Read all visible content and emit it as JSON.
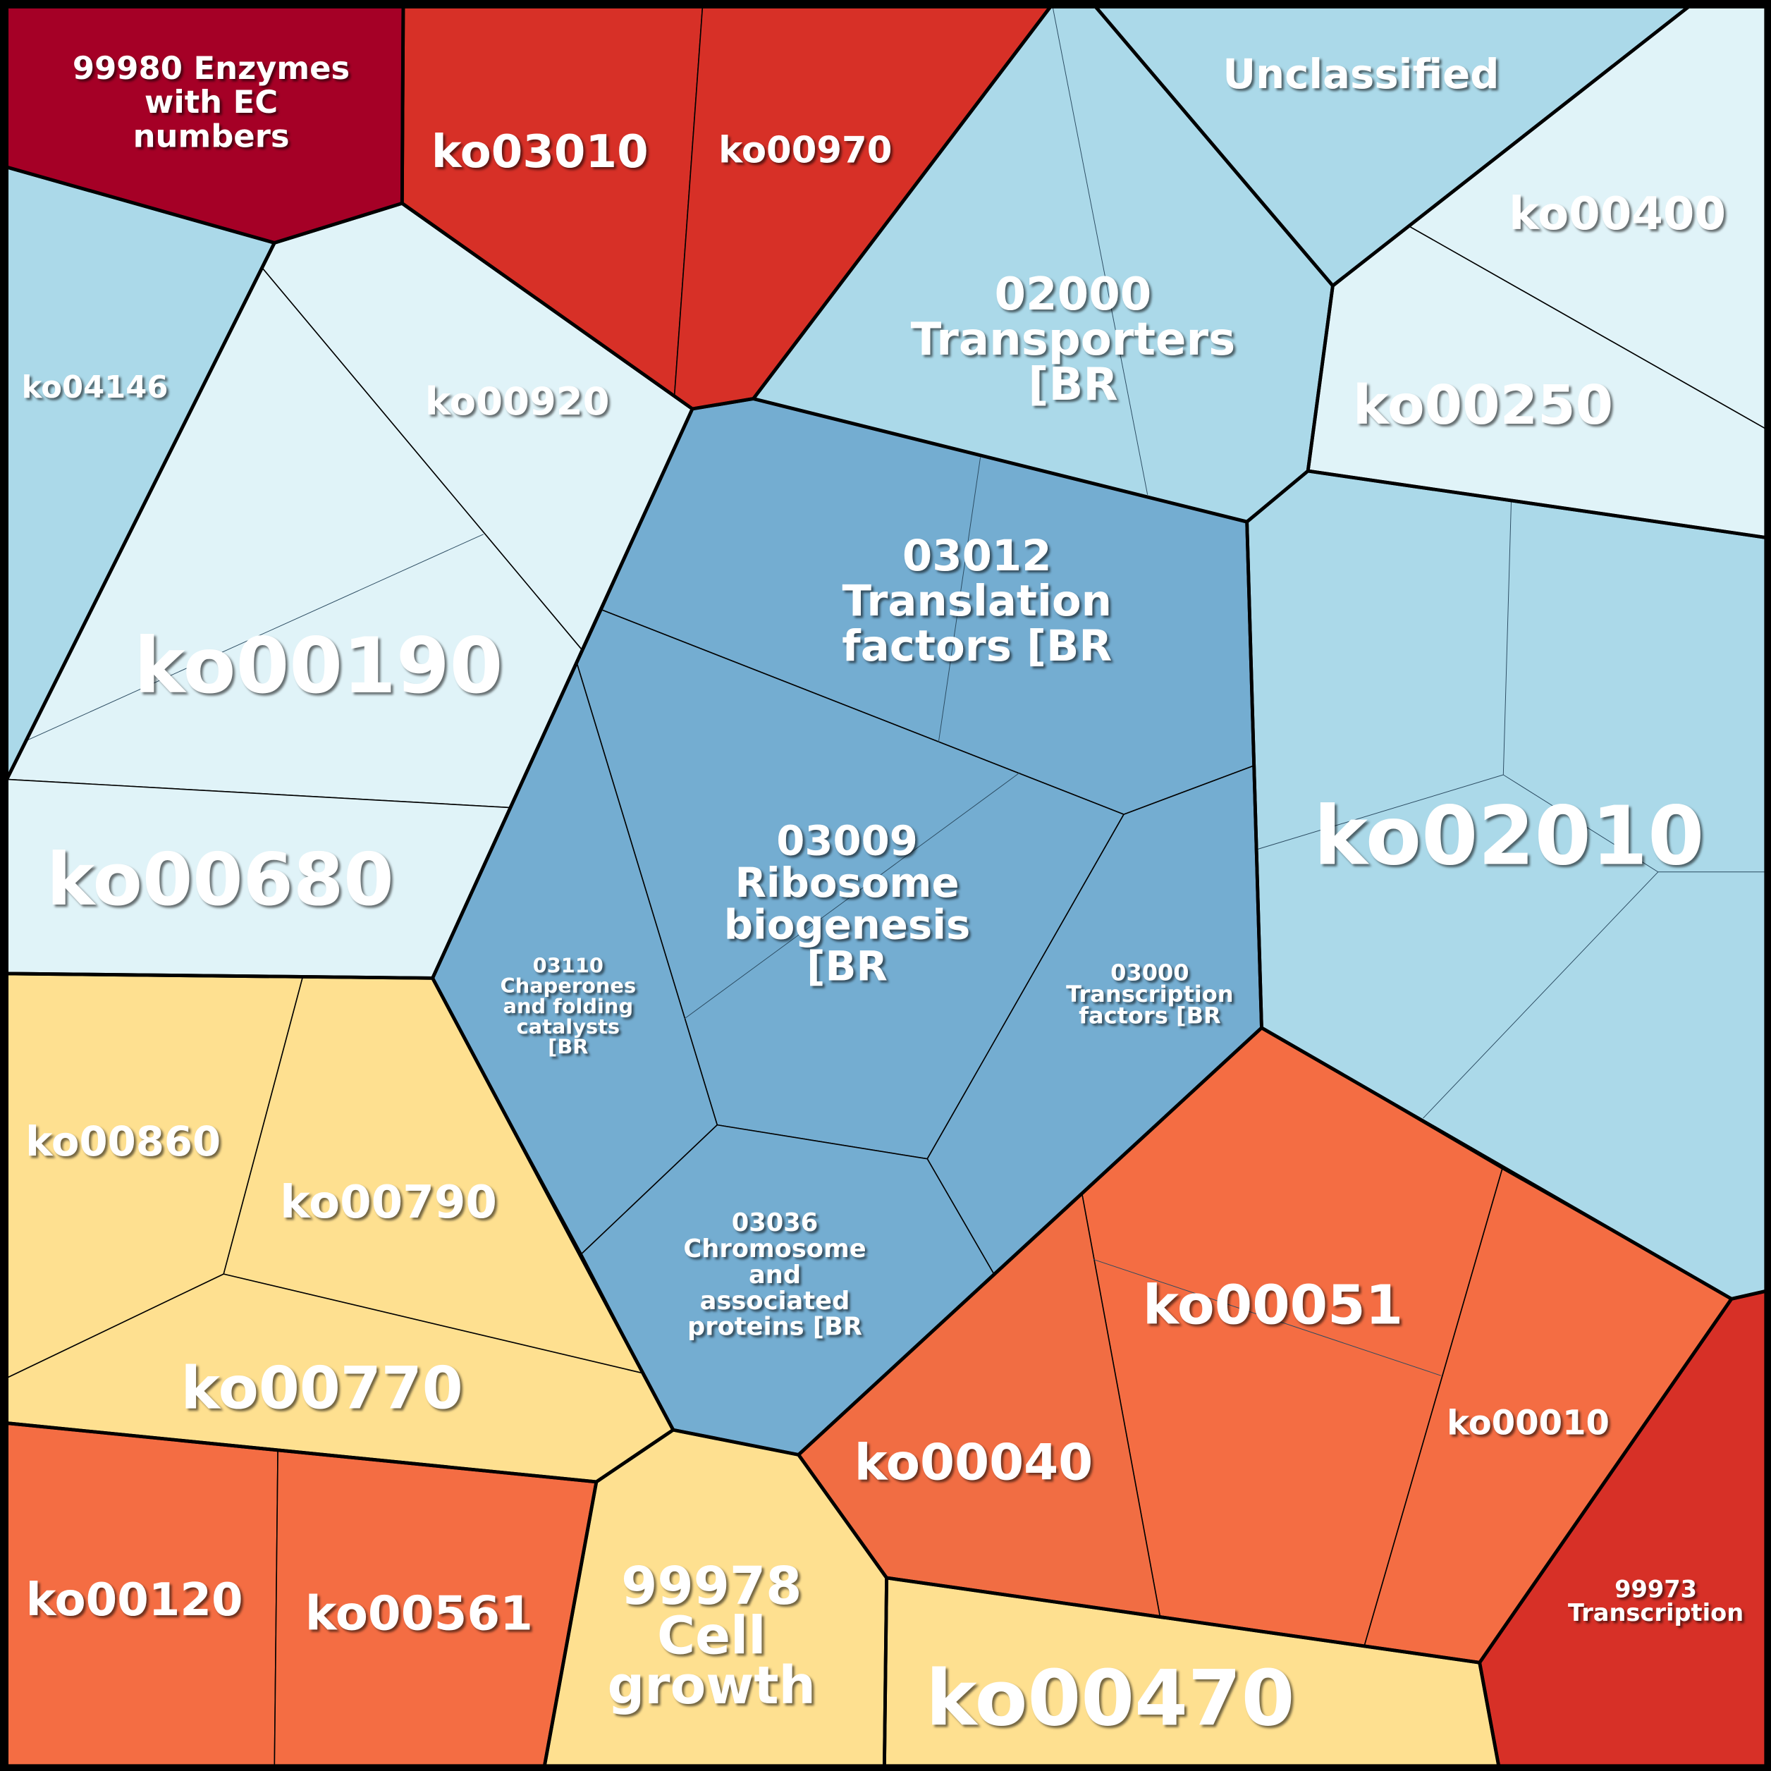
{
  "cells": [
    {
      "label": [
        "99980 Enzymes",
        "with EC",
        "numbers"
      ]
    },
    {
      "label": [
        "ko03010"
      ]
    },
    {
      "label": [
        "ko00970"
      ]
    },
    {
      "label": [
        "Unclassified"
      ]
    },
    {
      "label": [
        "ko00400"
      ]
    },
    {
      "label": [
        "02000",
        "Transporters",
        "[BR"
      ]
    },
    {
      "label": [
        "ko04146"
      ]
    },
    {
      "label": [
        "ko00920"
      ]
    },
    {
      "label": [
        "ko00250"
      ]
    },
    {
      "label": [
        "03012",
        "Translation",
        "factors [BR"
      ]
    },
    {
      "label": [
        "ko00190"
      ]
    },
    {
      "label": [
        "ko02010"
      ]
    },
    {
      "label": [
        "ko00680"
      ]
    },
    {
      "label": [
        "03009",
        "Ribosome",
        "biogenesis",
        "[BR"
      ]
    },
    {
      "label": [
        "03000",
        "Transcription",
        "factors [BR"
      ]
    },
    {
      "label": [
        "03110",
        "Chaperones",
        "and folding",
        "catalysts",
        "[BR"
      ]
    },
    {
      "label": [
        "ko00860"
      ]
    },
    {
      "label": [
        "ko00790"
      ]
    },
    {
      "label": [
        "03036",
        "Chromosome",
        "and",
        "associated",
        "proteins [BR"
      ]
    },
    {
      "label": [
        "ko00051"
      ]
    },
    {
      "label": [
        "ko00770"
      ]
    },
    {
      "label": [
        "ko00010"
      ]
    },
    {
      "label": [
        "ko00040"
      ]
    },
    {
      "label": [
        "99973",
        "Transcription"
      ]
    },
    {
      "label": [
        "99978",
        "Cell",
        "growth"
      ]
    },
    {
      "label": [
        "ko00120"
      ]
    },
    {
      "label": [
        "ko00561"
      ]
    },
    {
      "label": [
        "ko00470"
      ]
    }
  ]
}
